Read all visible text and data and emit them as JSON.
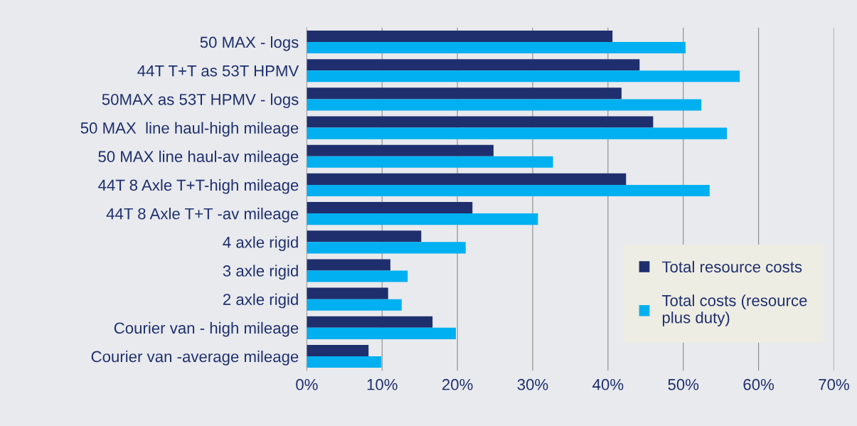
{
  "chart_data": {
    "type": "bar",
    "orientation": "horizontal",
    "categories": [
      "50 MAX - logs",
      "44T T+T as 53T HPMV",
      "50MAX as 53T HPMV - logs",
      "50 MAX  line haul-high mileage",
      "50 MAX line haul-av mileage",
      "44T 8 Axle T+T-high mileage",
      "44T 8 Axle T+T -av mileage",
      "4 axle rigid",
      "3 axle rigid",
      "2 axle rigid",
      "Courier van - high mileage",
      "Courier van -average mileage"
    ],
    "series": [
      {
        "name": "Total resource costs",
        "color": "#1f2f6e",
        "values": [
          40.6,
          44.2,
          41.8,
          46.0,
          24.8,
          42.4,
          22.0,
          15.2,
          11.1,
          10.8,
          16.7,
          8.2
        ]
      },
      {
        "name": "Total costs (resource plus duty)",
        "color": "#00b0f0",
        "values": [
          50.3,
          57.5,
          52.4,
          55.8,
          32.7,
          53.5,
          30.7,
          21.1,
          13.4,
          12.6,
          19.8,
          9.9
        ]
      }
    ],
    "xlim": [
      0,
      70
    ],
    "xticks": [
      {
        "value": 0,
        "label": "0%"
      },
      {
        "value": 10,
        "label": "10%"
      },
      {
        "value": 20,
        "label": "20%"
      },
      {
        "value": 30,
        "label": "30%"
      },
      {
        "value": 40,
        "label": "40%"
      },
      {
        "value": 50,
        "label": "50%"
      },
      {
        "value": 60,
        "label": "60%"
      },
      {
        "value": 70,
        "label": "70%"
      }
    ],
    "grid": "x",
    "legend": "bottom right"
  }
}
